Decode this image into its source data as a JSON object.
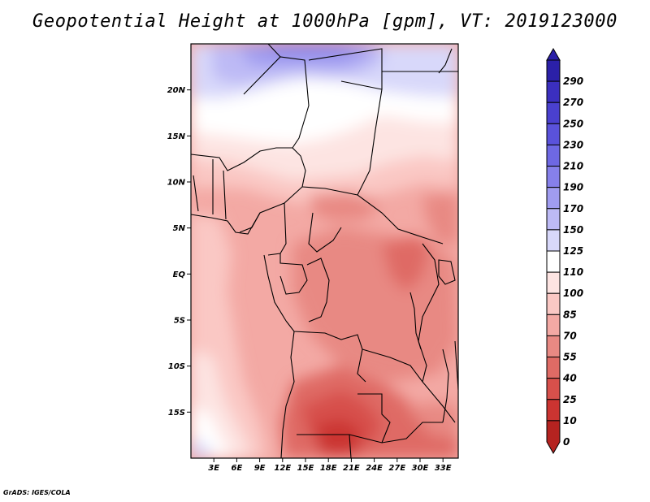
{
  "title": "Geopotential Height at 1000hPa [gpm], VT: 2019123000",
  "credit": "GrADS: IGES/COLA",
  "map": {
    "variable": "Geopotential Height",
    "level": "1000hPa",
    "units": "gpm",
    "valid_time": "2019123000",
    "region": "Central Africa",
    "lat_range": [
      -20,
      25
    ],
    "lon_range": [
      0,
      35
    ],
    "lat_ticks": [
      {
        "value": 20,
        "label": "20N"
      },
      {
        "value": 15,
        "label": "15N"
      },
      {
        "value": 10,
        "label": "10N"
      },
      {
        "value": 5,
        "label": "5N"
      },
      {
        "value": 0,
        "label": "EQ"
      },
      {
        "value": -5,
        "label": "5S"
      },
      {
        "value": -10,
        "label": "10S"
      },
      {
        "value": -15,
        "label": "15S"
      }
    ],
    "lon_ticks": [
      {
        "value": 3,
        "label": "3E"
      },
      {
        "value": 6,
        "label": "6E"
      },
      {
        "value": 9,
        "label": "9E"
      },
      {
        "value": 12,
        "label": "12E"
      },
      {
        "value": 15,
        "label": "15E"
      },
      {
        "value": 18,
        "label": "18E"
      },
      {
        "value": 21,
        "label": "21E"
      },
      {
        "value": 24,
        "label": "24E"
      },
      {
        "value": 27,
        "label": "27E"
      },
      {
        "value": 30,
        "label": "30E"
      },
      {
        "value": 33,
        "label": "33E"
      }
    ]
  },
  "colorbar": {
    "levels": [
      {
        "label": "290",
        "color": "#2b20a8"
      },
      {
        "label": "270",
        "color": "#3b2fbf"
      },
      {
        "label": "250",
        "color": "#4a40cf"
      },
      {
        "label": "230",
        "color": "#5a52db"
      },
      {
        "label": "210",
        "color": "#6e68e3"
      },
      {
        "label": "190",
        "color": "#8680ea"
      },
      {
        "label": "170",
        "color": "#a09cf0"
      },
      {
        "label": "150",
        "color": "#bdbaf5"
      },
      {
        "label": "125",
        "color": "#d8d8fa"
      },
      {
        "label": "110",
        "color": "#ffffff"
      },
      {
        "label": "100",
        "color": "#fde4e2"
      },
      {
        "label": "85",
        "color": "#fac8c4"
      },
      {
        "label": "70",
        "color": "#f3a9a4"
      },
      {
        "label": "55",
        "color": "#e88983"
      },
      {
        "label": "40",
        "color": "#df6b65"
      },
      {
        "label": "25",
        "color": "#d7504b"
      },
      {
        "label": "10",
        "color": "#cb3431"
      },
      {
        "label": "0",
        "color": "#b52320"
      }
    ]
  }
}
